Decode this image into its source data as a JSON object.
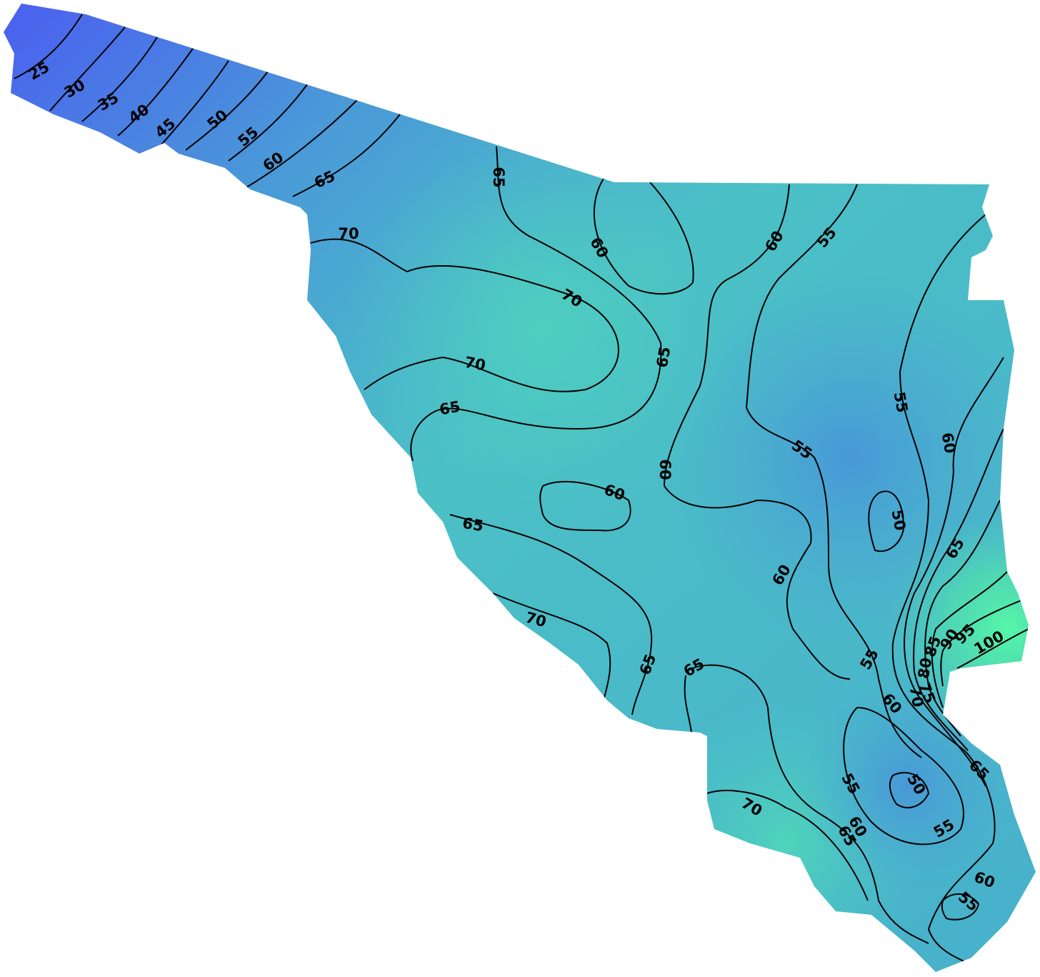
{
  "map": {
    "contour_labels": [
      "25",
      "30",
      "35",
      "40",
      "45",
      "50",
      "55",
      "60",
      "65",
      "65",
      "70",
      "60",
      "70",
      "60",
      "55",
      "65",
      "70",
      "65",
      "55",
      "60",
      "55",
      "60",
      "60",
      "50",
      "65",
      "65",
      "60",
      "70",
      "55",
      "65",
      "65",
      "100",
      "95",
      "90",
      "85",
      "80",
      "70",
      "75",
      "60",
      "65",
      "55",
      "50",
      "70",
      "60",
      "65",
      "55",
      "60",
      "55"
    ]
  }
}
